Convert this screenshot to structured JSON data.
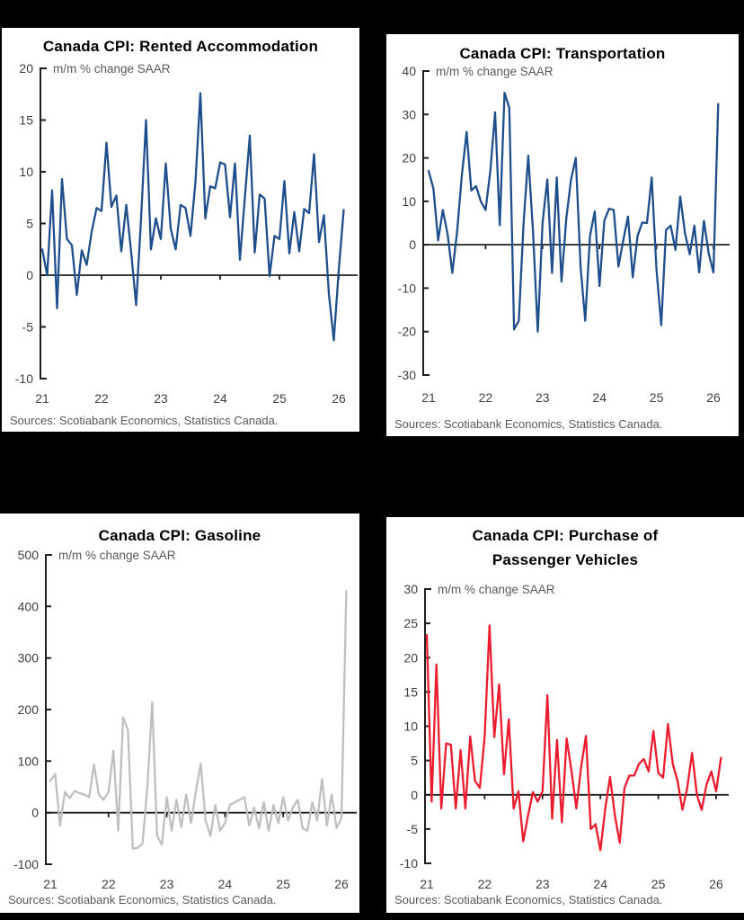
{
  "canvas": {
    "background": "#000000",
    "panel_background": "#ffffff"
  },
  "chart_data": [
    {
      "type": "line",
      "title": "Canada CPI: Rented Accommodation",
      "units_label": "m/m % change SAAR",
      "source": "Sources: Scotiabank Economics, Statistics Canada.",
      "line_color": "#1F4E8C",
      "x_start": "2021-01",
      "frequency": "monthly",
      "x_tick_labels": [
        "21",
        "22",
        "23",
        "24",
        "25",
        "26"
      ],
      "ylim": [
        -10,
        20
      ],
      "ytick_step": 5,
      "grid": false,
      "values": [
        2.5,
        0.0,
        8.2,
        -3.2,
        9.3,
        3.5,
        2.9,
        -1.9,
        2.4,
        1.0,
        4.2,
        6.5,
        6.2,
        12.8,
        6.6,
        7.7,
        2.3,
        6.8,
        2.2,
        -2.9,
        5.5,
        15.0,
        2.5,
        5.5,
        3.5,
        10.8,
        4.5,
        2.5,
        6.8,
        6.5,
        3.8,
        9.0,
        17.6,
        5.5,
        8.6,
        8.4,
        10.9,
        10.7,
        5.6,
        10.8,
        1.5,
        7.5,
        13.5,
        2.2,
        7.8,
        7.4,
        -0.1,
        3.8,
        3.5,
        9.1,
        2.1,
        6.1,
        2.3,
        6.4,
        6.0,
        11.7,
        3.2,
        5.8,
        -1.8,
        -6.3,
        0.5,
        6.3
      ]
    },
    {
      "type": "line",
      "title": "Canada CPI: Transportation",
      "units_label": "m/m % change SAAR",
      "source": "Sources: Scotiabank Economics, Statistics Canada.",
      "line_color": "#1F4E8C",
      "x_start": "2021-01",
      "frequency": "monthly",
      "x_tick_labels": [
        "21",
        "22",
        "23",
        "24",
        "25",
        "26"
      ],
      "ylim": [
        -30,
        40
      ],
      "ytick_step": 10,
      "grid": false,
      "values": [
        17,
        13,
        1,
        8,
        2.5,
        -6.5,
        3,
        16,
        26,
        12.5,
        13.5,
        10,
        8,
        17,
        30.5,
        4.5,
        35,
        31.5,
        -19.5,
        -17.5,
        5,
        20.5,
        3,
        -20,
        5,
        15,
        -6.5,
        15.5,
        -8.5,
        6,
        15,
        20,
        -5,
        -17.5,
        2,
        7.7,
        -9.5,
        5.5,
        8.3,
        8,
        -5,
        1,
        6.5,
        -7.5,
        2,
        5.1,
        5,
        15.5,
        -5.7,
        -18.5,
        3.4,
        4.4,
        -1.2,
        11.1,
        2.7,
        -2.2,
        4.4,
        -6.4,
        5.5,
        -2,
        -6.4,
        32.4
      ]
    },
    {
      "type": "line",
      "title": "Canada CPI: Gasoline",
      "units_label": "m/m % change SAAR",
      "source": "Sources: Scotiabank Economics, Statistics Canada.",
      "line_color": "#BFBFBF",
      "x_start": "2021-01",
      "frequency": "monthly",
      "x_tick_labels": [
        "21",
        "22",
        "23",
        "24",
        "25",
        "26"
      ],
      "ylim": [
        -100,
        500
      ],
      "ytick_step": 100,
      "grid": false,
      "values": [
        62,
        75,
        -25,
        40,
        28,
        42,
        38,
        35,
        30,
        93,
        35,
        25,
        40,
        120,
        -35,
        185,
        160,
        -70,
        -68,
        -60,
        50,
        215,
        -45,
        -62,
        30,
        -35,
        25,
        -28,
        35,
        -20,
        42,
        95,
        -15,
        -45,
        15,
        -35,
        -20,
        15,
        20,
        25,
        30,
        -25,
        10,
        -30,
        20,
        -35,
        15,
        -20,
        30,
        -15,
        10,
        25,
        -30,
        -35,
        20,
        -15,
        65,
        -25,
        35,
        -30,
        -10,
        430
      ]
    },
    {
      "type": "line",
      "title": "Canada CPI: Purchase of Passenger Vehicles",
      "units_label": "m/m % change SAAR",
      "source": "Sources: Scotiabank Economics, Statistics Canada.",
      "line_color": "#EB1C2D",
      "x_start": "2021-01",
      "frequency": "monthly",
      "x_tick_labels": [
        "21",
        "22",
        "23",
        "24",
        "25",
        "26"
      ],
      "ylim": [
        -10,
        30
      ],
      "ytick_step": 5,
      "grid": false,
      "values": [
        23.3,
        -1.0,
        19.0,
        -2.0,
        7.5,
        7.3,
        -2.0,
        6.5,
        -2.0,
        8.5,
        2.0,
        1.0,
        8.5,
        24.7,
        8.4,
        16.1,
        3.0,
        11.0,
        -2.0,
        0.5,
        -6.8,
        -3.0,
        0.4,
        -1.0,
        0.5,
        14.5,
        -3.5,
        8.0,
        -4.0,
        8.2,
        3.5,
        -2.0,
        4.0,
        8.6,
        -5.0,
        -4.3,
        -8.1,
        -2.0,
        2.6,
        -3.0,
        -7.0,
        1.0,
        2.8,
        2.8,
        4.5,
        5.2,
        3.4,
        9.3,
        3.2,
        2.5,
        10.3,
        4.5,
        2.0,
        -2.2,
        1.0,
        6.1,
        0.0,
        -2.2,
        1.5,
        3.4,
        0.5,
        5.4
      ]
    }
  ]
}
